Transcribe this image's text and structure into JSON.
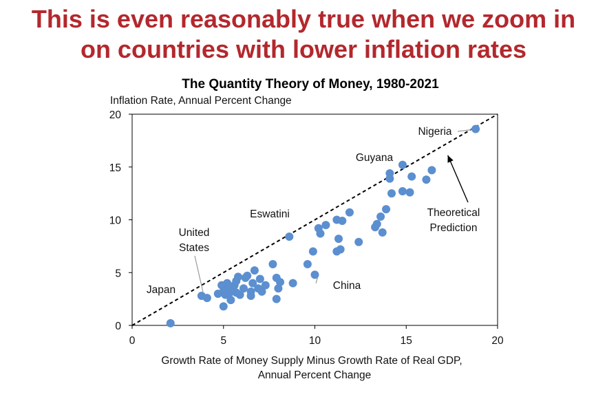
{
  "headline": {
    "line1": "This is even reasonably true when we zoom in",
    "line2": "on countries with lower inflation rates"
  },
  "colors": {
    "headline": "#b3282d",
    "point": "#5b8fd0",
    "axis": "#000000"
  },
  "chart_data": {
    "type": "scatter",
    "title": "The Quantity Theory of Money, 1980-2021",
    "ylabel": "Inflation Rate, Annual Percent Change",
    "xlabel_lines": [
      "Growth Rate of Money Supply Minus Growth Rate of Real GDP,",
      "Annual Percent Change"
    ],
    "xlim": [
      0,
      20
    ],
    "ylim": [
      0,
      20
    ],
    "xticks": [
      "0",
      "5",
      "10",
      "15",
      "20"
    ],
    "yticks": [
      "0",
      "5",
      "10",
      "15",
      "20"
    ],
    "grid": false,
    "reference_line": "dashed 45-degree line",
    "points": [
      [
        2.1,
        0.2
      ],
      [
        3.8,
        2.8
      ],
      [
        4.1,
        2.6
      ],
      [
        4.7,
        3.0
      ],
      [
        4.9,
        3.8
      ],
      [
        5.0,
        3.2
      ],
      [
        5.0,
        1.8
      ],
      [
        5.1,
        2.9
      ],
      [
        5.2,
        4.0
      ],
      [
        5.3,
        3.5
      ],
      [
        5.3,
        3.0
      ],
      [
        5.4,
        2.4
      ],
      [
        5.5,
        3.3
      ],
      [
        5.6,
        3.8
      ],
      [
        5.7,
        4.2
      ],
      [
        5.7,
        3.1
      ],
      [
        5.8,
        4.6
      ],
      [
        5.9,
        2.9
      ],
      [
        6.1,
        3.5
      ],
      [
        6.2,
        4.5
      ],
      [
        6.3,
        4.7
      ],
      [
        6.5,
        3.2
      ],
      [
        6.5,
        2.8
      ],
      [
        6.6,
        4.0
      ],
      [
        6.7,
        5.2
      ],
      [
        6.9,
        3.5
      ],
      [
        7.0,
        4.4
      ],
      [
        7.1,
        3.2
      ],
      [
        7.3,
        3.8
      ],
      [
        7.7,
        5.8
      ],
      [
        7.9,
        4.5
      ],
      [
        7.9,
        2.5
      ],
      [
        8.0,
        3.5
      ],
      [
        8.1,
        4.1
      ],
      [
        8.6,
        8.4
      ],
      [
        8.8,
        4.0
      ],
      [
        9.6,
        5.8
      ],
      [
        9.9,
        7.0
      ],
      [
        10.0,
        4.8
      ],
      [
        10.2,
        9.2
      ],
      [
        10.3,
        8.7
      ],
      [
        10.6,
        9.5
      ],
      [
        11.2,
        10.0
      ],
      [
        11.2,
        7.0
      ],
      [
        11.3,
        8.2
      ],
      [
        11.4,
        7.2
      ],
      [
        11.5,
        9.9
      ],
      [
        11.9,
        10.7
      ],
      [
        12.4,
        7.9
      ],
      [
        13.3,
        9.3
      ],
      [
        13.4,
        9.6
      ],
      [
        13.6,
        10.3
      ],
      [
        13.7,
        8.8
      ],
      [
        13.9,
        11.0
      ],
      [
        14.1,
        14.4
      ],
      [
        14.1,
        13.9
      ],
      [
        14.2,
        12.5
      ],
      [
        14.8,
        12.7
      ],
      [
        14.8,
        15.2
      ],
      [
        15.2,
        12.6
      ],
      [
        15.3,
        14.1
      ],
      [
        16.1,
        13.8
      ],
      [
        16.4,
        14.7
      ],
      [
        18.8,
        18.6
      ]
    ],
    "annotations": [
      {
        "label": "Nigeria",
        "x": 18.8,
        "y": 18.6
      },
      {
        "label": "Guyana",
        "x": 14.1,
        "y": 14.4
      },
      {
        "label": "Eswatini",
        "x": 8.6,
        "y": 8.4
      },
      {
        "label": "United States",
        "x": 3.8,
        "y": 2.8
      },
      {
        "label": "Japan",
        "x": 2.1,
        "y": 0.2
      },
      {
        "label": "China",
        "x": 10.0,
        "y": 4.8
      },
      {
        "label": "Theoretical Prediction",
        "x": 17.2,
        "y": 16.5
      }
    ],
    "annotation_lines": {
      "united_states": [
        "United",
        "States"
      ],
      "theoretical": [
        "Theoretical",
        "Prediction"
      ]
    }
  }
}
